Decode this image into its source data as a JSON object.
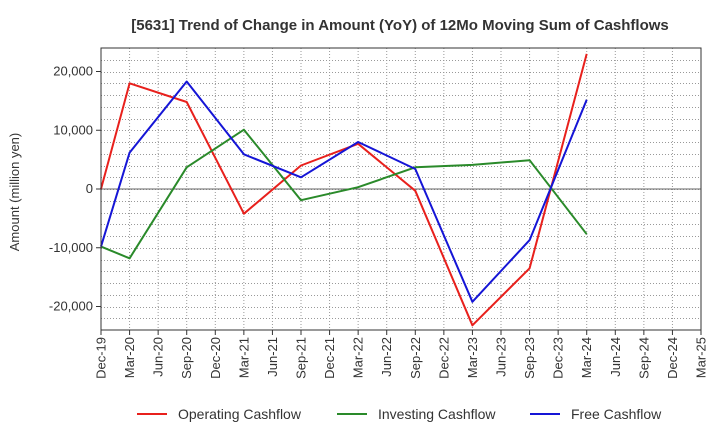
{
  "chart_data": {
    "type": "line",
    "title": "[5631]  Trend of Change in Amount (YoY) of 12Mo Moving Sum of Cashflows",
    "xlabel": "",
    "ylabel": "Amount (million yen)",
    "ylim": [
      -24000,
      24000
    ],
    "yticks": [
      20000,
      10000,
      0,
      -10000,
      -20000
    ],
    "ytick_labels": [
      "20,000",
      "10,000",
      "0",
      "-10,000",
      "-20,000"
    ],
    "categories": [
      "Dec-19",
      "Mar-20",
      "Jun-20",
      "Sep-20",
      "Dec-20",
      "Mar-21",
      "Jun-21",
      "Sep-21",
      "Dec-21",
      "Mar-22",
      "Jun-22",
      "Sep-22",
      "Dec-22",
      "Mar-23",
      "Jun-23",
      "Sep-23",
      "Dec-23",
      "Mar-24",
      "Jun-24",
      "Sep-24",
      "Dec-24",
      "Mar-25"
    ],
    "grid": true,
    "legend_position": "bottom",
    "series": [
      {
        "name": "Operating Cashflow",
        "color": "#e8201c",
        "points": [
          [
            0,
            0
          ],
          [
            1,
            18000
          ],
          [
            3,
            14800
          ],
          [
            5,
            -4200
          ],
          [
            7,
            4000
          ],
          [
            9,
            7700
          ],
          [
            11,
            -300
          ],
          [
            13,
            -23200
          ],
          [
            15,
            -13500
          ],
          [
            17,
            23000
          ]
        ]
      },
      {
        "name": "Investing Cashflow",
        "color": "#2a8a2a",
        "points": [
          [
            0,
            -9800
          ],
          [
            1,
            -11800
          ],
          [
            3,
            3700
          ],
          [
            5,
            10100
          ],
          [
            7,
            -1900
          ],
          [
            9,
            300
          ],
          [
            11,
            3700
          ],
          [
            13,
            4100
          ],
          [
            15,
            4900
          ],
          [
            17,
            -7700
          ]
        ]
      },
      {
        "name": "Free Cashflow",
        "color": "#1515d6",
        "points": [
          [
            0,
            -9800
          ],
          [
            1,
            6200
          ],
          [
            3,
            18300
          ],
          [
            5,
            5900
          ],
          [
            7,
            2000
          ],
          [
            9,
            8000
          ],
          [
            11,
            3400
          ],
          [
            13,
            -19200
          ],
          [
            15,
            -8700
          ],
          [
            17,
            15200
          ]
        ]
      }
    ]
  }
}
